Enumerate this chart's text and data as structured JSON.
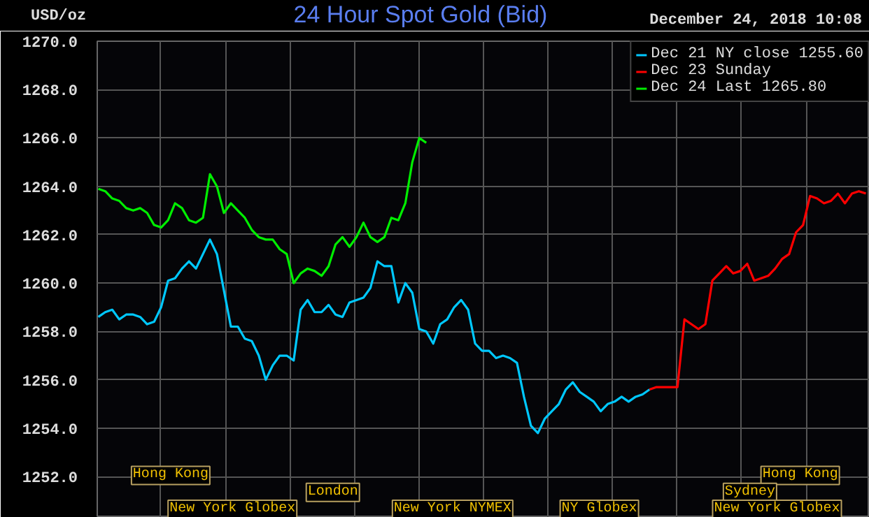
{
  "chart_data": {
    "type": "line",
    "title": "24 Hour Spot Gold (Bid)",
    "ylabel": "USD/oz",
    "categories": [
      null,
      null,
      null,
      null,
      null,
      null,
      null,
      null,
      null,
      null,
      null,
      null,
      null,
      null,
      null,
      null,
      null,
      null,
      null,
      null,
      null,
      null,
      null,
      null,
      null,
      null,
      null,
      null,
      null,
      null,
      null,
      null,
      null,
      null,
      null,
      null,
      null,
      null,
      null,
      null,
      null,
      null,
      null,
      null,
      null,
      null,
      null,
      null,
      null,
      null,
      null,
      null,
      null,
      null,
      null,
      null,
      null,
      null,
      null,
      null,
      null,
      null,
      null,
      null,
      null,
      null,
      null,
      null,
      null,
      null,
      null,
      null,
      null,
      null,
      null,
      null,
      null,
      null,
      null,
      null,
      null,
      null,
      null,
      null,
      null,
      null,
      null,
      null,
      null,
      null,
      null,
      null,
      null,
      null,
      null,
      null,
      null,
      null,
      null,
      null,
      null,
      null,
      null,
      null,
      null,
      null,
      null,
      null,
      null,
      null,
      null
    ],
    "series": [
      {
        "name": "Dec 21 NY close 1255.60",
        "color": "#00c8ff",
        "values": [
          1258.6,
          1258.8,
          1258.9,
          1258.5,
          1258.7,
          1258.7,
          1258.6,
          1258.3,
          1258.4,
          1259.0,
          1260.1,
          1260.2,
          1260.6,
          1260.9,
          1260.6,
          1261.2,
          1261.8,
          1261.2,
          1259.7,
          1258.2,
          1258.2,
          1257.7,
          1257.6,
          1257.0,
          1256.0,
          1256.6,
          1257.0,
          1257.0,
          1256.8,
          1258.9,
          1259.3,
          1258.8,
          1258.8,
          1259.1,
          1258.7,
          1258.6,
          1259.2,
          1259.3,
          1259.4,
          1259.8,
          1260.9,
          1260.7,
          1260.7,
          1259.2,
          1260.0,
          1259.6,
          1258.1,
          1258.0,
          1257.5,
          1258.3,
          1258.5,
          1259.0,
          1259.3,
          1258.9,
          1257.5,
          1257.2,
          1257.2,
          1256.9,
          1257.0,
          1256.9,
          1256.7,
          1255.3,
          1254.1,
          1253.8,
          1254.4,
          1254.7,
          1255.0,
          1255.6,
          1255.9,
          1255.5,
          1255.3,
          1255.1,
          1254.7,
          1255.0,
          1255.1,
          1255.3,
          1255.1,
          1255.3,
          1255.4,
          1255.6,
          null,
          null,
          null,
          null,
          null,
          null,
          null,
          null,
          null,
          null,
          null,
          null,
          null,
          null,
          null,
          null,
          null,
          null,
          null,
          null,
          null,
          null,
          null,
          null,
          null,
          null,
          null,
          null,
          null,
          null,
          null
        ]
      },
      {
        "name": "Dec 23 Sunday",
        "color": "#ff0000",
        "values": [
          null,
          null,
          null,
          null,
          null,
          null,
          null,
          null,
          null,
          null,
          null,
          null,
          null,
          null,
          null,
          null,
          null,
          null,
          null,
          null,
          null,
          null,
          null,
          null,
          null,
          null,
          null,
          null,
          null,
          null,
          null,
          null,
          null,
          null,
          null,
          null,
          null,
          null,
          null,
          null,
          null,
          null,
          null,
          null,
          null,
          null,
          null,
          null,
          null,
          null,
          null,
          null,
          null,
          null,
          null,
          null,
          null,
          null,
          null,
          null,
          null,
          null,
          null,
          null,
          null,
          null,
          null,
          null,
          null,
          null,
          null,
          null,
          null,
          null,
          null,
          null,
          null,
          null,
          null,
          1255.6,
          1255.7,
          1255.7,
          1255.7,
          1255.7,
          1258.5,
          1258.3,
          1258.1,
          1258.3,
          1260.1,
          1260.4,
          1260.7,
          1260.4,
          1260.5,
          1260.8,
          1260.1,
          1260.2,
          1260.3,
          1260.6,
          1261.0,
          1261.2,
          1262.1,
          1262.4,
          1263.6,
          1263.5,
          1263.3,
          1263.4,
          1263.7,
          1263.3,
          1263.7,
          1263.8,
          1263.7
        ]
      },
      {
        "name": "Dec 24 Last 1265.80",
        "color": "#00ee00",
        "values": [
          1263.9,
          1263.8,
          1263.5,
          1263.4,
          1263.1,
          1263.0,
          1263.1,
          1262.9,
          1262.4,
          1262.3,
          1262.6,
          1263.3,
          1263.1,
          1262.6,
          1262.5,
          1262.7,
          1264.5,
          1264.0,
          1262.9,
          1263.3,
          1263.0,
          1262.7,
          1262.2,
          1261.9,
          1261.8,
          1261.8,
          1261.4,
          1261.2,
          1260.0,
          1260.4,
          1260.6,
          1260.5,
          1260.3,
          1260.7,
          1261.6,
          1261.9,
          1261.5,
          1261.9,
          1262.5,
          1261.9,
          1261.7,
          1261.9,
          1262.7,
          1262.6,
          1263.3,
          1265.0,
          1266.0,
          1265.8,
          null,
          null,
          null,
          null,
          null,
          null,
          null,
          null,
          null,
          null,
          null,
          null,
          null,
          null,
          null,
          null,
          null,
          null,
          null,
          null,
          null,
          null,
          null,
          null,
          null,
          null,
          null,
          null,
          null,
          null,
          null,
          null,
          null,
          null,
          null,
          null,
          null,
          null,
          null,
          null,
          null,
          null,
          null,
          null,
          null,
          null,
          null,
          null,
          null,
          null,
          null,
          null,
          null,
          null,
          null,
          null,
          null,
          null,
          null,
          null,
          null,
          null,
          null
        ]
      }
    ],
    "ylim": [
      1250.3,
      1270
    ],
    "yticks": [
      {
        "value": 1252,
        "label": "1252.0"
      },
      {
        "value": 1254,
        "label": "1254.0"
      },
      {
        "value": 1256,
        "label": "1256.0"
      },
      {
        "value": 1258,
        "label": "1258.0"
      },
      {
        "value": 1260,
        "label": "1260.0"
      },
      {
        "value": 1262,
        "label": "1262.0"
      },
      {
        "value": 1264,
        "label": "1264.0"
      },
      {
        "value": 1266,
        "label": "1266.0"
      },
      {
        "value": 1268,
        "label": "1268.0"
      },
      {
        "value": 1270,
        "label": "1270.0"
      }
    ],
    "tick_labels": "y",
    "grid": true,
    "legend": "top right",
    "marker": "none",
    "line_style": "solid",
    "annotations": [
      "December 24, 2018 10:08",
      "Hong Kong",
      "London",
      "New York Globex",
      "New York NYMEX",
      "NY Globex",
      "Hong Kong",
      "Sydney",
      "New York Globex"
    ]
  }
}
